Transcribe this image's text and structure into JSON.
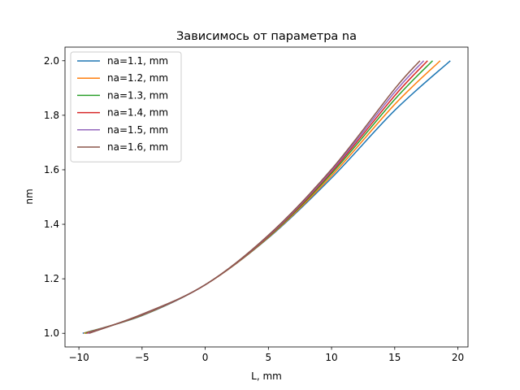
{
  "chart_data": {
    "type": "line",
    "title": "Зависимось от параметра na",
    "xlabel": "L, mm",
    "ylabel": "nm",
    "xlim": [
      -11.1,
      20.8
    ],
    "ylim": [
      0.95,
      2.05
    ],
    "xticks": [
      -10,
      -5,
      0,
      5,
      10,
      15,
      20
    ],
    "yticks": [
      1.0,
      1.2,
      1.4,
      1.6,
      1.8,
      2.0
    ],
    "grid": false,
    "legend_position": "top-left",
    "series": [
      {
        "name": "na=1.1, mm",
        "color": "#1f77b4",
        "x": [
          -9.7,
          -5,
          0,
          5,
          10,
          15,
          19.4
        ],
        "y": [
          1.0,
          1.065,
          1.178,
          1.35,
          1.57,
          1.818,
          2.0
        ]
      },
      {
        "name": "na=1.2, mm",
        "color": "#ff7f0e",
        "x": [
          -9.6,
          -5,
          0,
          5,
          10,
          15,
          18.6
        ],
        "y": [
          1.0,
          1.066,
          1.178,
          1.352,
          1.578,
          1.84,
          2.0
        ]
      },
      {
        "name": "na=1.3, mm",
        "color": "#2ca02c",
        "x": [
          -9.5,
          -5,
          0,
          5,
          10,
          15,
          18.0
        ],
        "y": [
          1.0,
          1.067,
          1.178,
          1.354,
          1.586,
          1.858,
          2.0
        ]
      },
      {
        "name": "na=1.4, mm",
        "color": "#d62728",
        "x": [
          -9.4,
          -5,
          0,
          5,
          10,
          15,
          17.6
        ],
        "y": [
          1.0,
          1.068,
          1.178,
          1.356,
          1.592,
          1.872,
          2.0
        ]
      },
      {
        "name": "na=1.5, mm",
        "color": "#9467bd",
        "x": [
          -9.3,
          -5,
          0,
          5,
          10,
          15,
          17.3
        ],
        "y": [
          1.0,
          1.069,
          1.178,
          1.358,
          1.597,
          1.885,
          2.0
        ]
      },
      {
        "name": "na=1.6, mm",
        "color": "#8c564b",
        "x": [
          -9.2,
          -5,
          0,
          5,
          10,
          15,
          17.0
        ],
        "y": [
          1.0,
          1.07,
          1.178,
          1.36,
          1.602,
          1.897,
          2.0
        ]
      }
    ]
  }
}
